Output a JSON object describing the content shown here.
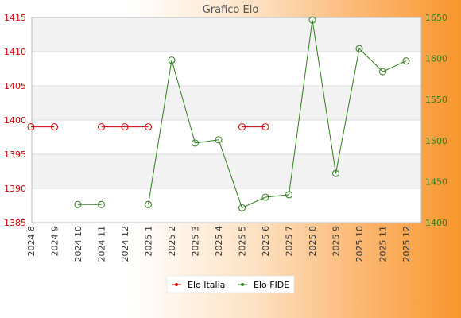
{
  "chart_data": {
    "type": "line",
    "title": "Grafico Elo",
    "categories": [
      "2024 8",
      "2024 9",
      "2024 10",
      "2024 11",
      "2024 12",
      "2025 1",
      "2025 2",
      "2025 3",
      "2025 4",
      "2025 5",
      "2025 6",
      "2025 7",
      "2025 8",
      "2025 9",
      "2025 10",
      "2025 11",
      "2025 12"
    ],
    "left_axis": {
      "ylim": [
        1385,
        1415
      ],
      "ticks": [
        1385,
        1390,
        1395,
        1400,
        1405,
        1410,
        1415
      ],
      "color": "#cc0000"
    },
    "right_axis": {
      "ylim": [
        1400,
        1650
      ],
      "ticks": [
        1400,
        1450,
        1500,
        1550,
        1600,
        1650
      ],
      "color": "#2f7d1c"
    },
    "series": [
      {
        "name": "Elo Italia",
        "axis": "left",
        "color": "#cc0000",
        "values": [
          1399,
          1399,
          null,
          1399,
          1399,
          1399,
          null,
          null,
          null,
          1399,
          1399,
          null,
          null,
          null,
          null,
          null,
          null
        ]
      },
      {
        "name": "Elo FIDE",
        "axis": "right",
        "color": "#2f7d1c",
        "values": [
          null,
          null,
          1422,
          1422,
          null,
          1422,
          1598,
          1497,
          1501,
          1418,
          1431,
          1434,
          1647,
          1460,
          1612,
          1584,
          1597
        ]
      }
    ],
    "grid": true,
    "legend": "bottom"
  }
}
